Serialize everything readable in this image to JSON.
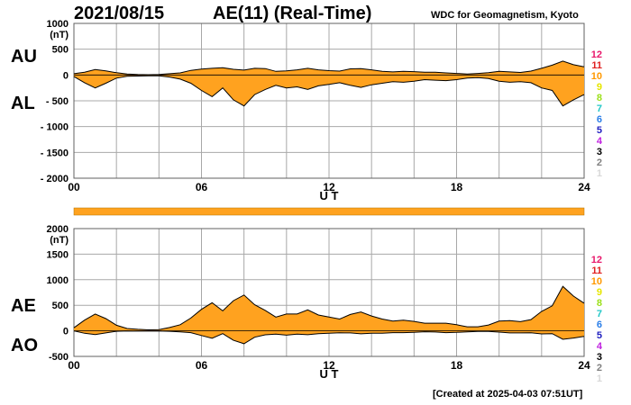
{
  "header": {
    "date": "2021/08/15",
    "title": "AE(11) (Real-Time)",
    "organization": "WDC for Geomagnetism, Kyoto"
  },
  "footer": {
    "created": "[Created at 2025-04-03 07:51UT]"
  },
  "colors": {
    "fill": "#ffa21f",
    "grid": "#a8a8a8",
    "line": "#000000"
  },
  "legend_numbers": [
    {
      "label": "12",
      "color": "#e8176b"
    },
    {
      "label": "11",
      "color": "#e02020"
    },
    {
      "label": "10",
      "color": "#ff9900"
    },
    {
      "label": "9",
      "color": "#e6e600"
    },
    {
      "label": "8",
      "color": "#9be01a"
    },
    {
      "label": "7",
      "color": "#22c7c7"
    },
    {
      "label": "6",
      "color": "#2a7ee8"
    },
    {
      "label": "5",
      "color": "#2020c0"
    },
    {
      "label": "4",
      "color": "#c020e0"
    },
    {
      "label": "3",
      "color": "#000000"
    },
    {
      "label": "2",
      "color": "#808080"
    },
    {
      "label": "1",
      "color": "#d8d8d8"
    }
  ],
  "chart_data": [
    {
      "type": "area",
      "panel_labels": {
        "upper": "AU",
        "lower": "AL"
      },
      "y_unit": "(nT)",
      "xlabel": "U T",
      "xlim": [
        0,
        24
      ],
      "ylim": [
        -2000,
        1000
      ],
      "x_ticks": [
        "00",
        "06",
        "12",
        "18",
        "24"
      ],
      "y_ticks": [
        "1000",
        "500",
        "0",
        "- 500",
        "- 1000",
        "- 1500",
        "- 2000"
      ],
      "x": [
        0,
        0.5,
        1,
        1.5,
        2,
        2.5,
        3,
        3.5,
        4,
        4.5,
        5,
        5.5,
        6,
        6.5,
        7,
        7.5,
        8,
        8.5,
        9,
        9.5,
        10,
        10.5,
        11,
        11.5,
        12,
        12.5,
        13,
        13.5,
        14,
        14.5,
        15,
        15.5,
        16,
        16.5,
        17,
        17.5,
        18,
        18.5,
        19,
        19.5,
        20,
        20.5,
        21,
        21.5,
        22,
        22.5,
        23,
        23.5,
        24
      ],
      "series": [
        {
          "name": "AU",
          "values": [
            25,
            55,
            105,
            80,
            45,
            20,
            10,
            5,
            10,
            25,
            40,
            90,
            115,
            130,
            140,
            110,
            95,
            130,
            125,
            70,
            80,
            100,
            130,
            100,
            85,
            75,
            120,
            125,
            100,
            70,
            60,
            70,
            65,
            55,
            55,
            40,
            30,
            20,
            30,
            45,
            70,
            60,
            50,
            75,
            130,
            190,
            270,
            200,
            160
          ]
        },
        {
          "name": "AL",
          "values": [
            -30,
            -150,
            -250,
            -160,
            -60,
            -25,
            -20,
            -15,
            -15,
            -40,
            -80,
            -160,
            -300,
            -420,
            -250,
            -480,
            -600,
            -380,
            -280,
            -200,
            -250,
            -230,
            -280,
            -210,
            -180,
            -150,
            -200,
            -240,
            -190,
            -160,
            -130,
            -140,
            -120,
            -90,
            -100,
            -110,
            -90,
            -60,
            -50,
            -70,
            -120,
            -140,
            -130,
            -150,
            -250,
            -300,
            -600,
            -480,
            -380
          ]
        }
      ]
    },
    {
      "type": "area",
      "panel_labels": {
        "upper": "AE",
        "lower": "AO"
      },
      "y_unit": "(nT)",
      "xlabel": "U T",
      "xlim": [
        0,
        24
      ],
      "ylim": [
        -500,
        2000
      ],
      "x_ticks": [
        "00",
        "06",
        "12",
        "18",
        "24"
      ],
      "y_ticks": [
        "2000",
        "1500",
        "1000",
        "500",
        "0",
        "-500"
      ],
      "x": [
        0,
        0.5,
        1,
        1.5,
        2,
        2.5,
        3,
        3.5,
        4,
        4.5,
        5,
        5.5,
        6,
        6.5,
        7,
        7.5,
        8,
        8.5,
        9,
        9.5,
        10,
        10.5,
        11,
        11.5,
        12,
        12.5,
        13,
        13.5,
        14,
        14.5,
        15,
        15.5,
        16,
        16.5,
        17,
        17.5,
        18,
        18.5,
        19,
        19.5,
        20,
        20.5,
        21,
        21.5,
        22,
        22.5,
        23,
        23.5,
        24
      ],
      "series": [
        {
          "name": "AE",
          "values": [
            60,
            210,
            330,
            240,
            110,
            45,
            30,
            20,
            25,
            65,
            120,
            250,
            420,
            550,
            390,
            590,
            700,
            510,
            400,
            270,
            330,
            330,
            410,
            310,
            270,
            230,
            320,
            370,
            290,
            230,
            190,
            210,
            185,
            150,
            150,
            150,
            120,
            80,
            80,
            115,
            190,
            200,
            180,
            220,
            380,
            490,
            870,
            680,
            540
          ]
        },
        {
          "name": "AO",
          "values": [
            0,
            -48,
            -72,
            -40,
            -8,
            -3,
            -5,
            -5,
            -3,
            -8,
            -20,
            -35,
            -92,
            -145,
            -55,
            -185,
            -252,
            -125,
            -78,
            -65,
            -85,
            -65,
            -75,
            -55,
            -48,
            -38,
            -40,
            -58,
            -45,
            -45,
            -35,
            -35,
            -28,
            -18,
            -23,
            -35,
            -30,
            -20,
            -10,
            -13,
            -25,
            -40,
            -40,
            -38,
            -60,
            -55,
            -165,
            -140,
            -110
          ]
        }
      ]
    }
  ]
}
